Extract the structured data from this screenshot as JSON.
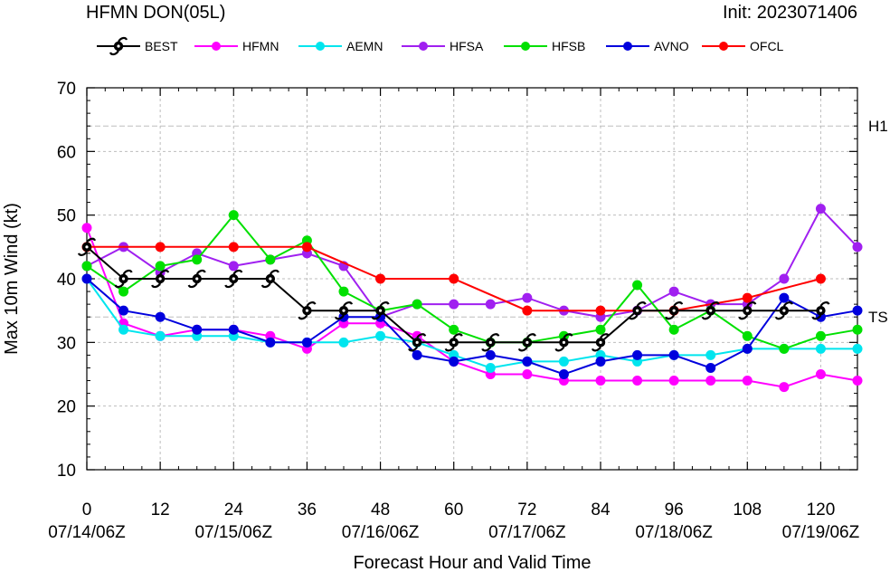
{
  "header": {
    "title": "HFMN DON(05L)",
    "init": "Init: 2023071406"
  },
  "chart_data": {
    "type": "line",
    "xlabel": "Forecast Hour and Valid Time",
    "ylabel": "Max 10m Wind (kt)",
    "xlim": [
      0,
      126
    ],
    "ylim": [
      10,
      70
    ],
    "x_ticks": [
      0,
      12,
      24,
      36,
      48,
      60,
      72,
      84,
      96,
      108,
      120
    ],
    "x_tick_labels": [
      "0",
      "12",
      "24",
      "36",
      "48",
      "60",
      "72",
      "84",
      "96",
      "108",
      "120"
    ],
    "valid_time_labels": [
      {
        "x": 0,
        "label": "07/14/06Z"
      },
      {
        "x": 24,
        "label": "07/15/06Z"
      },
      {
        "x": 48,
        "label": "07/16/06Z"
      },
      {
        "x": 72,
        "label": "07/17/06Z"
      },
      {
        "x": 96,
        "label": "07/18/06Z"
      },
      {
        "x": 120,
        "label": "07/19/06Z"
      }
    ],
    "y_ticks": [
      10,
      20,
      30,
      40,
      50,
      60,
      70
    ],
    "y_tick_labels": [
      "10",
      "20",
      "30",
      "40",
      "50",
      "60",
      "70"
    ],
    "thresholds": [
      {
        "label": "H1",
        "value": 64
      },
      {
        "label": "TS",
        "value": 34
      }
    ],
    "grid": "dashed",
    "legend_position": "top",
    "series": [
      {
        "name": "HFMN",
        "color": "#ff00ff",
        "x": [
          0,
          6,
          12,
          18,
          24,
          30,
          36,
          42,
          48,
          54,
          60,
          66,
          72,
          78,
          84,
          90,
          96,
          102,
          108,
          114,
          120,
          126
        ],
        "y": [
          48,
          33,
          31,
          32,
          32,
          31,
          29,
          33,
          33,
          31,
          27,
          25,
          25,
          24,
          24,
          24,
          24,
          24,
          24,
          23,
          25,
          24
        ]
      },
      {
        "name": "AEMN",
        "color": "#00e5ee",
        "x": [
          0,
          6,
          12,
          18,
          24,
          30,
          36,
          42,
          48,
          54,
          60,
          66,
          72,
          78,
          84,
          90,
          96,
          102,
          108,
          114,
          120,
          126
        ],
        "y": [
          40,
          32,
          31,
          31,
          31,
          30,
          30,
          30,
          31,
          30,
          28,
          26,
          27,
          27,
          28,
          27,
          28,
          28,
          29,
          29,
          29,
          29
        ]
      },
      {
        "name": "HFSA",
        "color": "#a020f0",
        "x": [
          0,
          6,
          12,
          18,
          24,
          30,
          36,
          42,
          48,
          54,
          60,
          66,
          72,
          78,
          84,
          90,
          96,
          102,
          108,
          114,
          120,
          126
        ],
        "y": [
          42,
          45,
          41,
          44,
          42,
          43,
          44,
          42,
          34,
          36,
          36,
          36,
          37,
          35,
          34,
          35,
          38,
          36,
          36,
          40,
          51,
          45
        ]
      },
      {
        "name": "HFSB",
        "color": "#00e000",
        "x": [
          0,
          6,
          12,
          18,
          24,
          30,
          36,
          42,
          48,
          54,
          60,
          66,
          72,
          78,
          84,
          90,
          96,
          102,
          108,
          114,
          120,
          126
        ],
        "y": [
          42,
          38,
          42,
          43,
          50,
          43,
          46,
          38,
          35,
          36,
          32,
          30,
          30,
          31,
          32,
          39,
          32,
          35,
          31,
          29,
          31,
          32
        ]
      },
      {
        "name": "AVNO",
        "color": "#0000dd",
        "x": [
          0,
          6,
          12,
          18,
          24,
          30,
          36,
          42,
          48,
          54,
          60,
          66,
          72,
          78,
          84,
          90,
          96,
          102,
          108,
          114,
          120,
          126
        ],
        "y": [
          40,
          35,
          34,
          32,
          32,
          30,
          30,
          34,
          34,
          28,
          27,
          28,
          27,
          25,
          27,
          28,
          28,
          26,
          29,
          37,
          34,
          35
        ]
      },
      {
        "name": "OFCL",
        "color": "#ff0000",
        "x": [
          0,
          12,
          24,
          36,
          48,
          60,
          72,
          84,
          96,
          108,
          120
        ],
        "y": [
          45,
          45,
          45,
          45,
          40,
          40,
          35,
          35,
          35,
          37,
          40
        ]
      },
      {
        "name": "BEST",
        "color": "#000000",
        "x": [
          0,
          6,
          12,
          18,
          24,
          30,
          36,
          42,
          48,
          54,
          60,
          66,
          72,
          78,
          84,
          90,
          96,
          102,
          108,
          114,
          120
        ],
        "y": [
          45,
          40,
          40,
          40,
          40,
          40,
          35,
          35,
          35,
          30,
          30,
          30,
          30,
          30,
          30,
          35,
          35,
          35,
          35,
          35,
          35
        ]
      }
    ],
    "legend_order": [
      "BEST",
      "HFMN",
      "AEMN",
      "HFSA",
      "HFSB",
      "AVNO",
      "OFCL"
    ]
  }
}
